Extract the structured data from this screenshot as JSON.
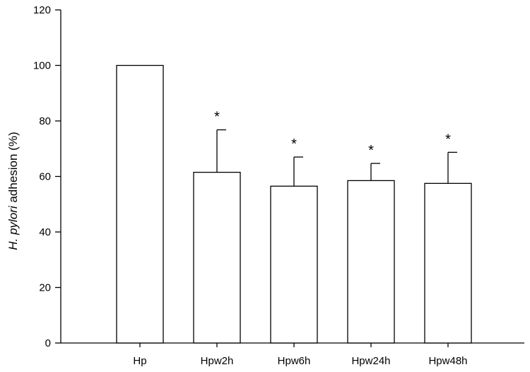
{
  "chart_data": {
    "type": "bar",
    "title": "",
    "xlabel": "",
    "ylabel_italic": "H. pylori",
    "ylabel_rest": " adhesion (%)",
    "categories": [
      "Hp",
      "Hpw2h",
      "Hpw6h",
      "Hpw24h",
      "Hpw48h"
    ],
    "values": [
      100,
      61.5,
      56.5,
      58.5,
      57.5
    ],
    "error": [
      0,
      15.3,
      10.5,
      6.2,
      11.2
    ],
    "significance": [
      "",
      "*",
      "*",
      "*",
      "*"
    ],
    "ylim": [
      0,
      120
    ],
    "yticks": [
      0,
      20,
      40,
      60,
      80,
      100,
      120
    ],
    "grid": false,
    "legend": "none"
  },
  "colors": {
    "bar_fill": "#ffffff",
    "bar_stroke": "#000000",
    "axis": "#000000"
  }
}
